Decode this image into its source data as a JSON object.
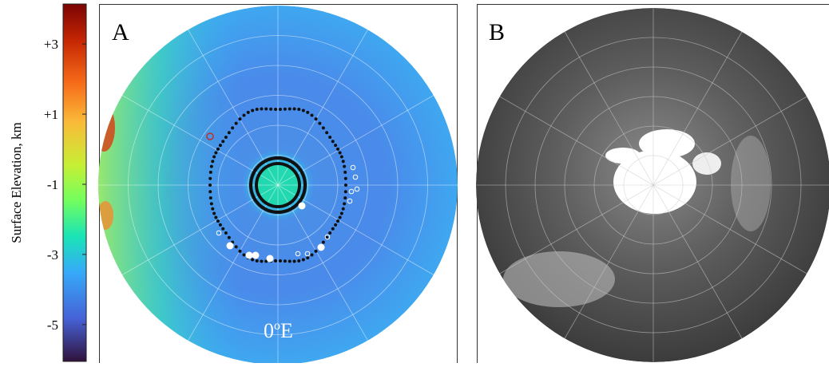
{
  "colorbar": {
    "label": "Surface Elevation, km",
    "lim": [
      -6.05,
      4.14
    ],
    "ticks": [
      {
        "value": 3,
        "label": "+3"
      },
      {
        "value": 1,
        "label": "+1"
      },
      -1,
      -3,
      -5
    ]
  },
  "panels": [
    {
      "label": "A",
      "annotation": {
        "base": "0",
        "sup": "o",
        "unit": "E"
      }
    },
    {
      "label": "B"
    }
  ]
}
